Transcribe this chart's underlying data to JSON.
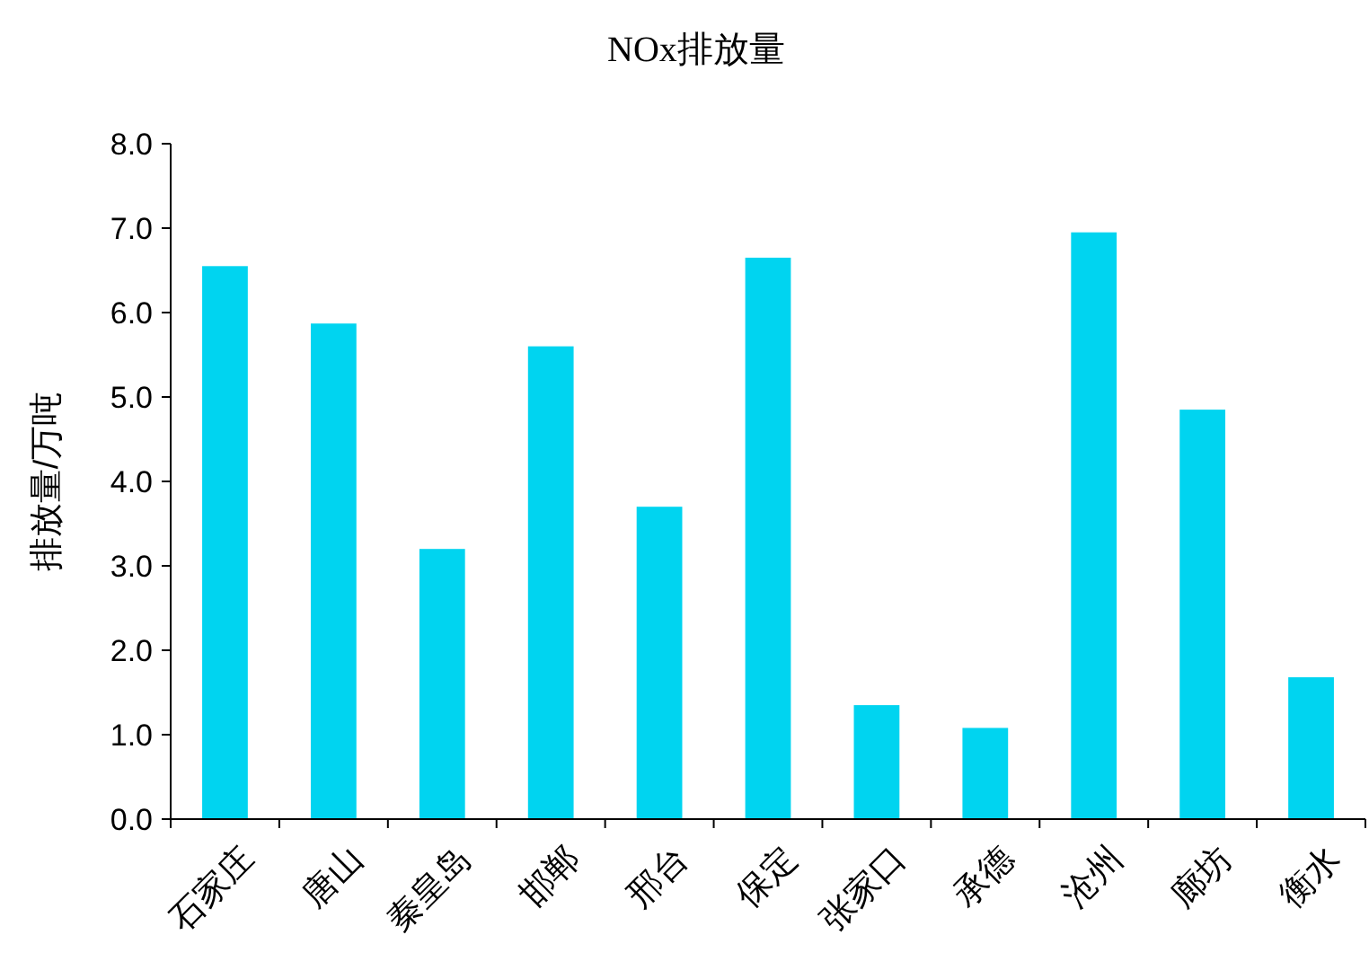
{
  "chart_data": {
    "type": "bar",
    "title": "NOx排放量",
    "ylabel": "排放量/万吨",
    "categories": [
      "石家庄",
      "唐山",
      "秦皇岛",
      "邯郸",
      "邢台",
      "保定",
      "张家口",
      "承德",
      "沧州",
      "廊坊",
      "衡水"
    ],
    "values": [
      6.55,
      5.87,
      3.2,
      5.6,
      3.7,
      6.65,
      1.35,
      1.08,
      6.95,
      4.85,
      1.68
    ],
    "color": "#00d4f0",
    "ylim": [
      0,
      8
    ],
    "yticks": [
      {
        "value": 0,
        "label": "0.0"
      },
      {
        "value": 1,
        "label": "1.0"
      },
      {
        "value": 2,
        "label": "2.0"
      },
      {
        "value": 3,
        "label": "3.0"
      },
      {
        "value": 4,
        "label": "4.0"
      },
      {
        "value": 5,
        "label": "5.0"
      },
      {
        "value": 6,
        "label": "6.0"
      },
      {
        "value": 7,
        "label": "7.0"
      },
      {
        "value": 8,
        "label": "8.0"
      }
    ],
    "grid": false
  }
}
